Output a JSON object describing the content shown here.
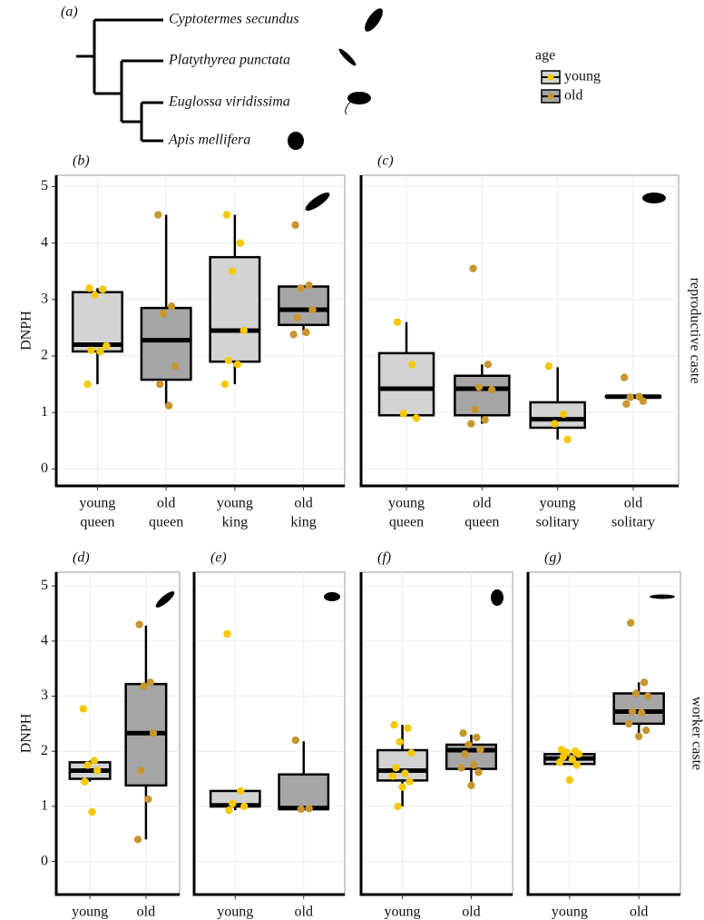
{
  "tree": {
    "label": "(a)",
    "species": [
      "Cyptotermes secundus",
      "Platythyrea punctata",
      "Euglossa viridissima",
      "Apis mellifera"
    ]
  },
  "legend": {
    "title": "age",
    "items": [
      {
        "name": "young",
        "box_color": "#d3d3d3",
        "point_color": "#f5c800"
      },
      {
        "name": "old",
        "box_color": "#a6a6a6",
        "point_color": "#c8962f"
      }
    ]
  },
  "chart_data": [
    {
      "type": "box",
      "label": "(b)",
      "ylabel": "DNPH",
      "ylim": [
        -0.3,
        5.2
      ],
      "yticks": [
        0,
        1,
        2,
        3,
        4,
        5
      ],
      "grid": true,
      "categories": [
        [
          "young",
          "queen"
        ],
        [
          "old",
          "queen"
        ],
        [
          "young",
          "king"
        ],
        [
          "old",
          "king"
        ]
      ],
      "boxes": [
        {
          "group": "young",
          "min": 1.5,
          "q1": 2.08,
          "median": 2.2,
          "q3": 3.13,
          "max": 3.2,
          "points": [
            3.2,
            3.18,
            3.08,
            2.18,
            2.1,
            2.08,
            1.5
          ]
        },
        {
          "group": "old",
          "min": 1.12,
          "q1": 1.58,
          "median": 2.28,
          "q3": 2.85,
          "max": 4.5,
          "points": [
            4.5,
            2.88,
            2.75,
            1.82,
            1.5,
            1.12
          ]
        },
        {
          "group": "young",
          "min": 1.5,
          "q1": 1.9,
          "median": 2.45,
          "q3": 3.75,
          "max": 4.5,
          "points": [
            4.5,
            4.0,
            3.5,
            2.45,
            1.92,
            1.85,
            1.5
          ]
        },
        {
          "group": "old",
          "min": 2.38,
          "q1": 2.55,
          "median": 2.82,
          "q3": 3.23,
          "max": 3.25,
          "points": [
            4.32,
            3.25,
            3.2,
            2.82,
            2.68,
            2.42,
            2.38
          ]
        }
      ]
    },
    {
      "type": "box",
      "label": "(c)",
      "strip": "reproductive caste",
      "ylim": [
        -0.3,
        5.2
      ],
      "yticks": [
        0,
        1,
        2,
        3,
        4,
        5
      ],
      "grid": true,
      "categories": [
        [
          "young",
          "queen"
        ],
        [
          "old",
          "queen"
        ],
        [
          "young",
          "solitary"
        ],
        [
          "old",
          "solitary"
        ]
      ],
      "boxes": [
        {
          "group": "young",
          "min": 0.95,
          "q1": 0.95,
          "median": 1.42,
          "q3": 2.05,
          "max": 2.6,
          "points": [
            2.6,
            1.85,
            0.98,
            0.9
          ]
        },
        {
          "group": "old",
          "min": 0.8,
          "q1": 0.95,
          "median": 1.42,
          "q3": 1.65,
          "max": 1.85,
          "points": [
            3.55,
            1.85,
            1.45,
            1.4,
            1.05,
            0.87,
            0.8
          ]
        },
        {
          "group": "young",
          "min": 0.52,
          "q1": 0.73,
          "median": 0.88,
          "q3": 1.18,
          "max": 1.8,
          "points": [
            1.82,
            0.97,
            0.8,
            0.52
          ]
        },
        {
          "group": "old",
          "min": 1.27,
          "q1": 1.27,
          "median": 1.28,
          "q3": 1.29,
          "max": 1.29,
          "points": [
            1.62,
            1.28,
            1.27,
            1.2,
            1.15
          ]
        }
      ]
    },
    {
      "type": "box",
      "label": "(d)",
      "ylabel": "DNPH",
      "ylim": [
        -0.6,
        5.25
      ],
      "yticks": [
        0,
        1,
        2,
        3,
        4,
        5
      ],
      "grid": true,
      "categories": [
        [
          "young"
        ],
        [
          "old"
        ]
      ],
      "boxes": [
        {
          "group": "young",
          "min": 1.45,
          "q1": 1.5,
          "median": 1.65,
          "q3": 1.8,
          "max": 1.83,
          "points": [
            2.77,
            1.83,
            1.75,
            1.65,
            1.45,
            0.9
          ]
        },
        {
          "group": "old",
          "min": 0.4,
          "q1": 1.38,
          "median": 2.33,
          "q3": 3.22,
          "max": 4.28,
          "points": [
            4.3,
            3.25,
            3.18,
            2.33,
            1.65,
            1.13,
            0.4
          ]
        }
      ]
    },
    {
      "type": "box",
      "label": "(e)",
      "ylim": [
        -0.6,
        5.25
      ],
      "yticks": [
        0,
        1,
        2,
        3,
        4,
        5
      ],
      "grid": true,
      "categories": [
        [
          "young"
        ],
        [
          "old"
        ]
      ],
      "boxes": [
        {
          "group": "young",
          "min": 0.93,
          "q1": 1.0,
          "median": 1.02,
          "q3": 1.28,
          "max": 1.28,
          "points": [
            4.13,
            1.28,
            1.05,
            1.0,
            0.93
          ]
        },
        {
          "group": "old",
          "min": 0.95,
          "q1": 0.95,
          "median": 0.97,
          "q3": 1.58,
          "max": 2.18,
          "points": [
            2.2,
            0.96,
            0.95
          ]
        }
      ]
    },
    {
      "type": "box",
      "label": "(f)",
      "ylim": [
        -0.6,
        5.25
      ],
      "yticks": [
        0,
        1,
        2,
        3,
        4,
        5
      ],
      "grid": true,
      "categories": [
        [
          "young"
        ],
        [
          "old"
        ]
      ],
      "boxes": [
        {
          "group": "young",
          "min": 1.0,
          "q1": 1.47,
          "median": 1.65,
          "q3": 2.02,
          "max": 2.48,
          "points": [
            2.48,
            2.42,
            2.17,
            1.97,
            1.7,
            1.6,
            1.55,
            1.45,
            1.35,
            1.0
          ]
        },
        {
          "group": "old",
          "min": 1.38,
          "q1": 1.68,
          "median": 2.02,
          "q3": 2.12,
          "max": 2.3,
          "points": [
            2.33,
            2.25,
            2.12,
            2.03,
            1.95,
            1.75,
            1.7,
            1.62,
            1.38
          ]
        }
      ]
    },
    {
      "type": "box",
      "label": "(g)",
      "strip": "worker caste",
      "ylim": [
        -0.6,
        5.25
      ],
      "yticks": [
        0,
        1,
        2,
        3,
        4,
        5
      ],
      "grid": true,
      "categories": [
        [
          "young"
        ],
        [
          "old"
        ]
      ],
      "boxes": [
        {
          "group": "young",
          "min": 1.77,
          "q1": 1.77,
          "median": 1.87,
          "q3": 1.95,
          "max": 1.95,
          "points": [
            2.03,
            2.0,
            1.98,
            1.95,
            1.9,
            1.85,
            1.8,
            1.75,
            1.48
          ]
        },
        {
          "group": "old",
          "min": 2.27,
          "q1": 2.5,
          "median": 2.72,
          "q3": 3.05,
          "max": 3.25,
          "points": [
            4.33,
            3.25,
            3.05,
            3.0,
            2.72,
            2.7,
            2.5,
            2.38,
            2.27
          ]
        }
      ]
    }
  ]
}
